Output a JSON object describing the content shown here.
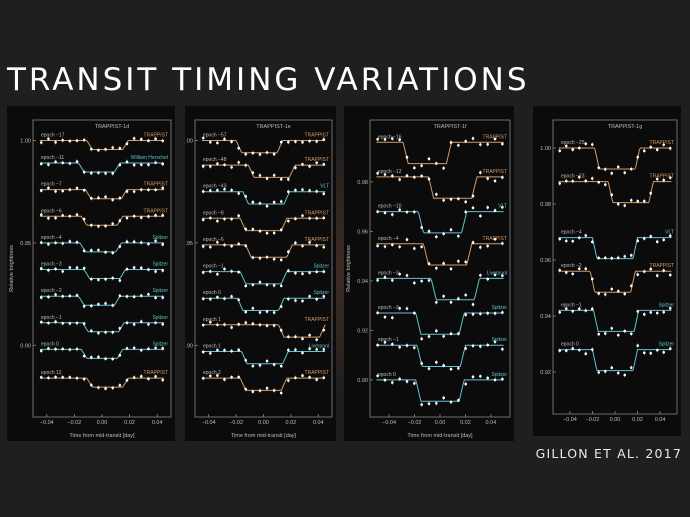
{
  "title": "TRANSIT TIMING VARIATIONS",
  "credit": "GILLON ET AL. 2017",
  "colors": {
    "trappist": "#d89a63",
    "spitzer": "#5fc4cf",
    "other": "#5fc4cf",
    "points": "#ffffff",
    "axis": "#888888",
    "text": "#bdbdbd"
  },
  "chart_data": [
    {
      "type": "scatter",
      "title": "TRAPPIST-1d",
      "xlabel": "Time from mid-transit [day]",
      "ylabel": "Relative brightness",
      "xlim": [
        -0.05,
        0.05
      ],
      "ylim": [
        0.865,
        1.01
      ],
      "xticks": [
        -0.04,
        -0.02,
        0.0,
        0.02,
        0.04
      ],
      "yticks": [
        0.9,
        0.95,
        1.0
      ],
      "series": [
        {
          "epoch": "epoch −17",
          "instrument": "TRAPPIST",
          "offset": 1.0,
          "depth": 0.0044,
          "shift": 0.004
        },
        {
          "epoch": "epoch −11",
          "instrument": "William Herschel",
          "offset": 0.989,
          "depth": 0.0044,
          "shift": -0.002
        },
        {
          "epoch": "epoch −7",
          "instrument": "TRAPPIST",
          "offset": 0.976,
          "depth": 0.0044,
          "shift": 0.003
        },
        {
          "epoch": "epoch −6",
          "instrument": "TRAPPIST",
          "offset": 0.963,
          "depth": 0.0044,
          "shift": 0.0
        },
        {
          "epoch": "epoch −4",
          "instrument": "Spitzer",
          "offset": 0.95,
          "depth": 0.0044,
          "shift": -0.001
        },
        {
          "epoch": "epoch −3",
          "instrument": "Spitzer",
          "offset": 0.937,
          "depth": 0.0044,
          "shift": 0.002
        },
        {
          "epoch": "epoch −2",
          "instrument": "Spitzer",
          "offset": 0.924,
          "depth": 0.0044,
          "shift": -0.002
        },
        {
          "epoch": "epoch −1",
          "instrument": "Spitzer",
          "offset": 0.911,
          "depth": 0.0044,
          "shift": 0.001
        },
        {
          "epoch": "epoch 0",
          "instrument": "Spitzer",
          "offset": 0.898,
          "depth": 0.0044,
          "shift": 0.0
        },
        {
          "epoch": "epoch 12",
          "instrument": "TRAPPIST",
          "offset": 0.884,
          "depth": 0.0044,
          "shift": 0.004
        }
      ]
    },
    {
      "type": "scatter",
      "title": "TRAPPIST-1e",
      "xlabel": "Time from mid-transit [day]",
      "ylabel": "",
      "xlim": [
        -0.05,
        0.05
      ],
      "ylim": [
        0.865,
        1.01
      ],
      "xticks": [
        -0.04,
        -0.02,
        0.0,
        0.02,
        0.04
      ],
      "yticks": [
        0.9,
        0.95,
        1.0
      ],
      "series": [
        {
          "epoch": "epoch −57",
          "instrument": "TRAPPIST",
          "offset": 1.0,
          "depth": 0.006,
          "shift": -0.003
        },
        {
          "epoch": "epoch −48",
          "instrument": "TRAPPIST",
          "offset": 0.988,
          "depth": 0.006,
          "shift": 0.006
        },
        {
          "epoch": "epoch −43",
          "instrument": "VLT",
          "offset": 0.975,
          "depth": 0.006,
          "shift": 0.002
        },
        {
          "epoch": "epoch −8",
          "instrument": "TRAPPIST",
          "offset": 0.962,
          "depth": 0.006,
          "shift": 0.0
        },
        {
          "epoch": "epoch −6",
          "instrument": "TRAPPIST",
          "offset": 0.949,
          "depth": 0.006,
          "shift": 0.004
        },
        {
          "epoch": "epoch −1",
          "instrument": "Spitzer",
          "offset": 0.936,
          "depth": 0.006,
          "shift": 0.0
        },
        {
          "epoch": "epoch 0",
          "instrument": "Spitzer",
          "offset": 0.923,
          "depth": 0.006,
          "shift": -0.002
        },
        {
          "epoch": "epoch 1",
          "instrument": "TRAPPIST",
          "offset": 0.91,
          "depth": 0.006,
          "shift": 0.028
        },
        {
          "epoch": "epoch 1",
          "instrument": "Liverpool",
          "offset": 0.897,
          "depth": 0.006,
          "shift": 0.001
        },
        {
          "epoch": "epoch 2",
          "instrument": "TRAPPIST",
          "offset": 0.884,
          "depth": 0.006,
          "shift": 0.0
        }
      ]
    },
    {
      "type": "scatter",
      "title": "TRAPPIST-1f",
      "xlabel": "Time from mid-transit [day]",
      "ylabel": "Relative brightness",
      "xlim": [
        -0.055,
        0.055
      ],
      "ylim": [
        0.885,
        1.005
      ],
      "xticks": [
        -0.04,
        -0.02,
        0.0,
        0.02,
        0.04
      ],
      "yticks": [
        0.9,
        0.92,
        0.94,
        0.96,
        0.98
      ],
      "series": [
        {
          "epoch": "epoch −16",
          "instrument": "TRAPPIST",
          "offset": 0.996,
          "depth": 0.0086,
          "shift": -0.01
        },
        {
          "epoch": "epoch −12",
          "instrument": "TRAPPIST",
          "offset": 0.982,
          "depth": 0.0086,
          "shift": 0.01
        },
        {
          "epoch": "epoch −10",
          "instrument": "VLT",
          "offset": 0.968,
          "depth": 0.0086,
          "shift": 0.002
        },
        {
          "epoch": "epoch −4",
          "instrument": "TRAPPIST",
          "offset": 0.955,
          "depth": 0.0086,
          "shift": 0.006
        },
        {
          "epoch": "epoch −3",
          "instrument": "Liverpool",
          "offset": 0.941,
          "depth": 0.0086,
          "shift": 0.012
        },
        {
          "epoch": "epoch −2",
          "instrument": "Spitzer",
          "offset": 0.927,
          "depth": 0.0086,
          "shift": 0.0
        },
        {
          "epoch": "epoch −1",
          "instrument": "Spitzer",
          "offset": 0.914,
          "depth": 0.0086,
          "shift": 0.001
        },
        {
          "epoch": "epoch 0",
          "instrument": "Spitzer",
          "offset": 0.9,
          "depth": 0.0086,
          "shift": 0.0
        }
      ]
    },
    {
      "type": "scatter",
      "title": "TRAPPIST-1g",
      "xlabel": "",
      "ylabel": "",
      "xlim": [
        -0.055,
        0.055
      ],
      "ylim": [
        0.905,
        1.01
      ],
      "xticks": [
        -0.04,
        -0.02,
        0.0,
        0.02,
        0.04
      ],
      "yticks": [
        0.92,
        0.94,
        0.96,
        0.98,
        1.0
      ],
      "series": [
        {
          "epoch": "epoch −25",
          "instrument": "TRAPPIST",
          "offset": 1.0,
          "depth": 0.0075,
          "shift": 0.002
        },
        {
          "epoch": "epoch −23",
          "instrument": "TRAPPIST",
          "offset": 0.988,
          "depth": 0.0075,
          "shift": 0.014
        },
        {
          "epoch": "epoch −4",
          "instrument": "VLT",
          "offset": 0.968,
          "depth": 0.0075,
          "shift": 0.0
        },
        {
          "epoch": "epoch −2",
          "instrument": "TRAPPIST",
          "offset": 0.956,
          "depth": 0.0075,
          "shift": -0.002
        },
        {
          "epoch": "epoch −1",
          "instrument": "Spitzer",
          "offset": 0.942,
          "depth": 0.0075,
          "shift": 0.001
        },
        {
          "epoch": "epoch 0",
          "instrument": "Spitzer",
          "offset": 0.928,
          "depth": 0.0075,
          "shift": 0.0
        }
      ]
    }
  ]
}
